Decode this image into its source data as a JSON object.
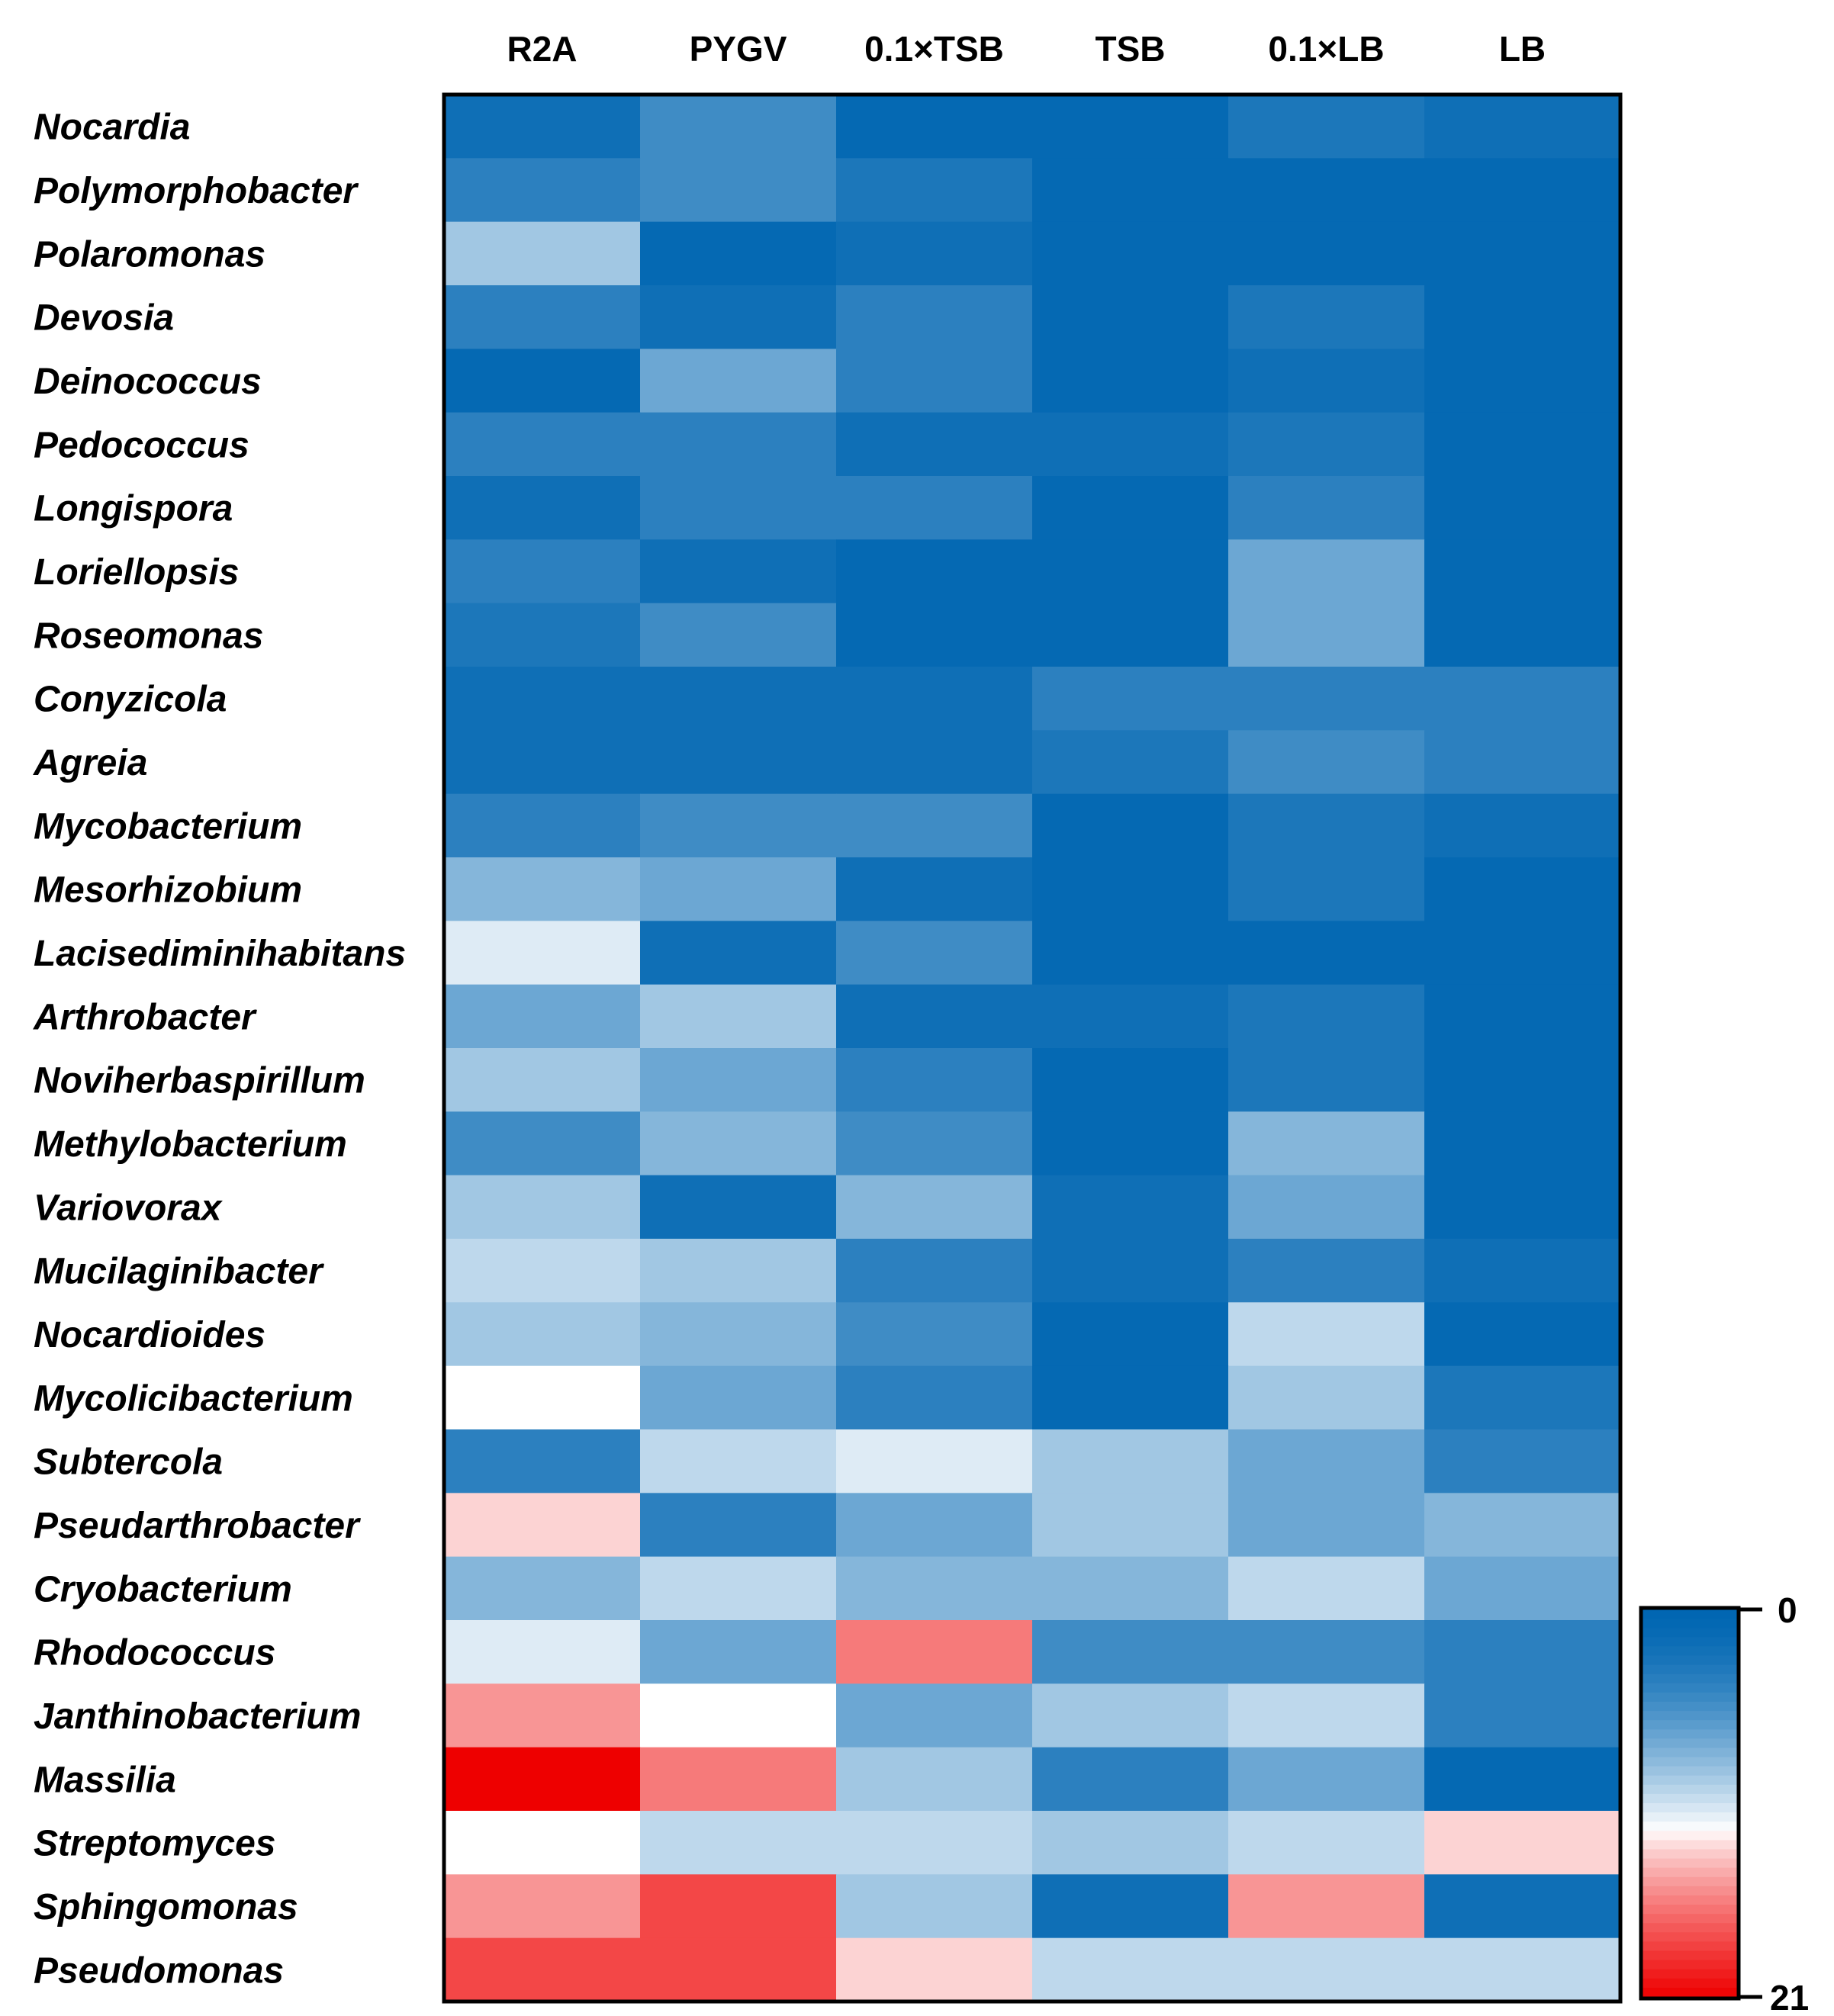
{
  "chart_data": {
    "type": "heatmap",
    "title": "",
    "columns": [
      "R2A",
      "PYGV",
      "0.1×TSB",
      "TSB",
      "0.1×LB",
      "LB"
    ],
    "rows": [
      "Nocardia",
      "Polymorphobacter",
      "Polaromonas",
      "Devosia",
      "Deinococcus",
      "Pedococcus",
      "Longispora",
      "Loriellopsis",
      "Roseomonas",
      "Conyzicola",
      "Agreia",
      "Mycobacterium",
      "Mesorhizobium",
      "Lacisediminihabitans",
      "Arthrobacter",
      "Noviherbaspirillum",
      "Methylobacterium",
      "Variovorax",
      "Mucilaginibacter",
      "Nocardioides",
      "Mycolicibacterium",
      "Subtercola",
      "Pseudarthrobacter",
      "Cryobacterium",
      "Rhodococcus",
      "Janthinobacterium",
      "Massilia",
      "Streptomyces",
      "Sphingomonas",
      "Pseudomonas"
    ],
    "values": [
      [
        2,
        5,
        1,
        1,
        3,
        2
      ],
      [
        4,
        5,
        3,
        1,
        1,
        1
      ],
      [
        9,
        1,
        2,
        1,
        1,
        1
      ],
      [
        4,
        2,
        4,
        1,
        3,
        1
      ],
      [
        1,
        7,
        4,
        1,
        2,
        1
      ],
      [
        4,
        4,
        2,
        2,
        3,
        1
      ],
      [
        2,
        4,
        4,
        1,
        4,
        1
      ],
      [
        4,
        2,
        1,
        1,
        7,
        1
      ],
      [
        3,
        5,
        1,
        1,
        7,
        1
      ],
      [
        2,
        2,
        2,
        4,
        4,
        4
      ],
      [
        2,
        2,
        2,
        3,
        5,
        4
      ],
      [
        4,
        5,
        5,
        1,
        3,
        2
      ],
      [
        8,
        7,
        2,
        1,
        3,
        1
      ],
      [
        11,
        2,
        5,
        1,
        1,
        1
      ],
      [
        7,
        9,
        2,
        2,
        3,
        1
      ],
      [
        9,
        7,
        4,
        1,
        3,
        1
      ],
      [
        5,
        8,
        5,
        1,
        8,
        1
      ],
      [
        9,
        2,
        8,
        2,
        7,
        1
      ],
      [
        10,
        9,
        4,
        2,
        4,
        2
      ],
      [
        9,
        8,
        5,
        1,
        10,
        1
      ],
      [
        12,
        7,
        4,
        1,
        9,
        3
      ],
      [
        4,
        10,
        11,
        9,
        7,
        4
      ],
      [
        13,
        4,
        7,
        9,
        7,
        8
      ],
      [
        8,
        10,
        8,
        8,
        10,
        7
      ],
      [
        11,
        7,
        16,
        5,
        5,
        4
      ],
      [
        15,
        12,
        7,
        9,
        10,
        4
      ],
      [
        21,
        16,
        9,
        4,
        7,
        1
      ],
      [
        12,
        10,
        10,
        9,
        10,
        13
      ],
      [
        15,
        18,
        9,
        2,
        15,
        2
      ],
      [
        18,
        18,
        13,
        10,
        10,
        10
      ]
    ],
    "colorbar": {
      "min": 0,
      "max": 21,
      "tick_labels": [
        "0",
        "21"
      ],
      "low_color": "#0066b2",
      "mid_color": "#ffffff",
      "high_color": "#ee0000",
      "mid_value": 12
    }
  }
}
